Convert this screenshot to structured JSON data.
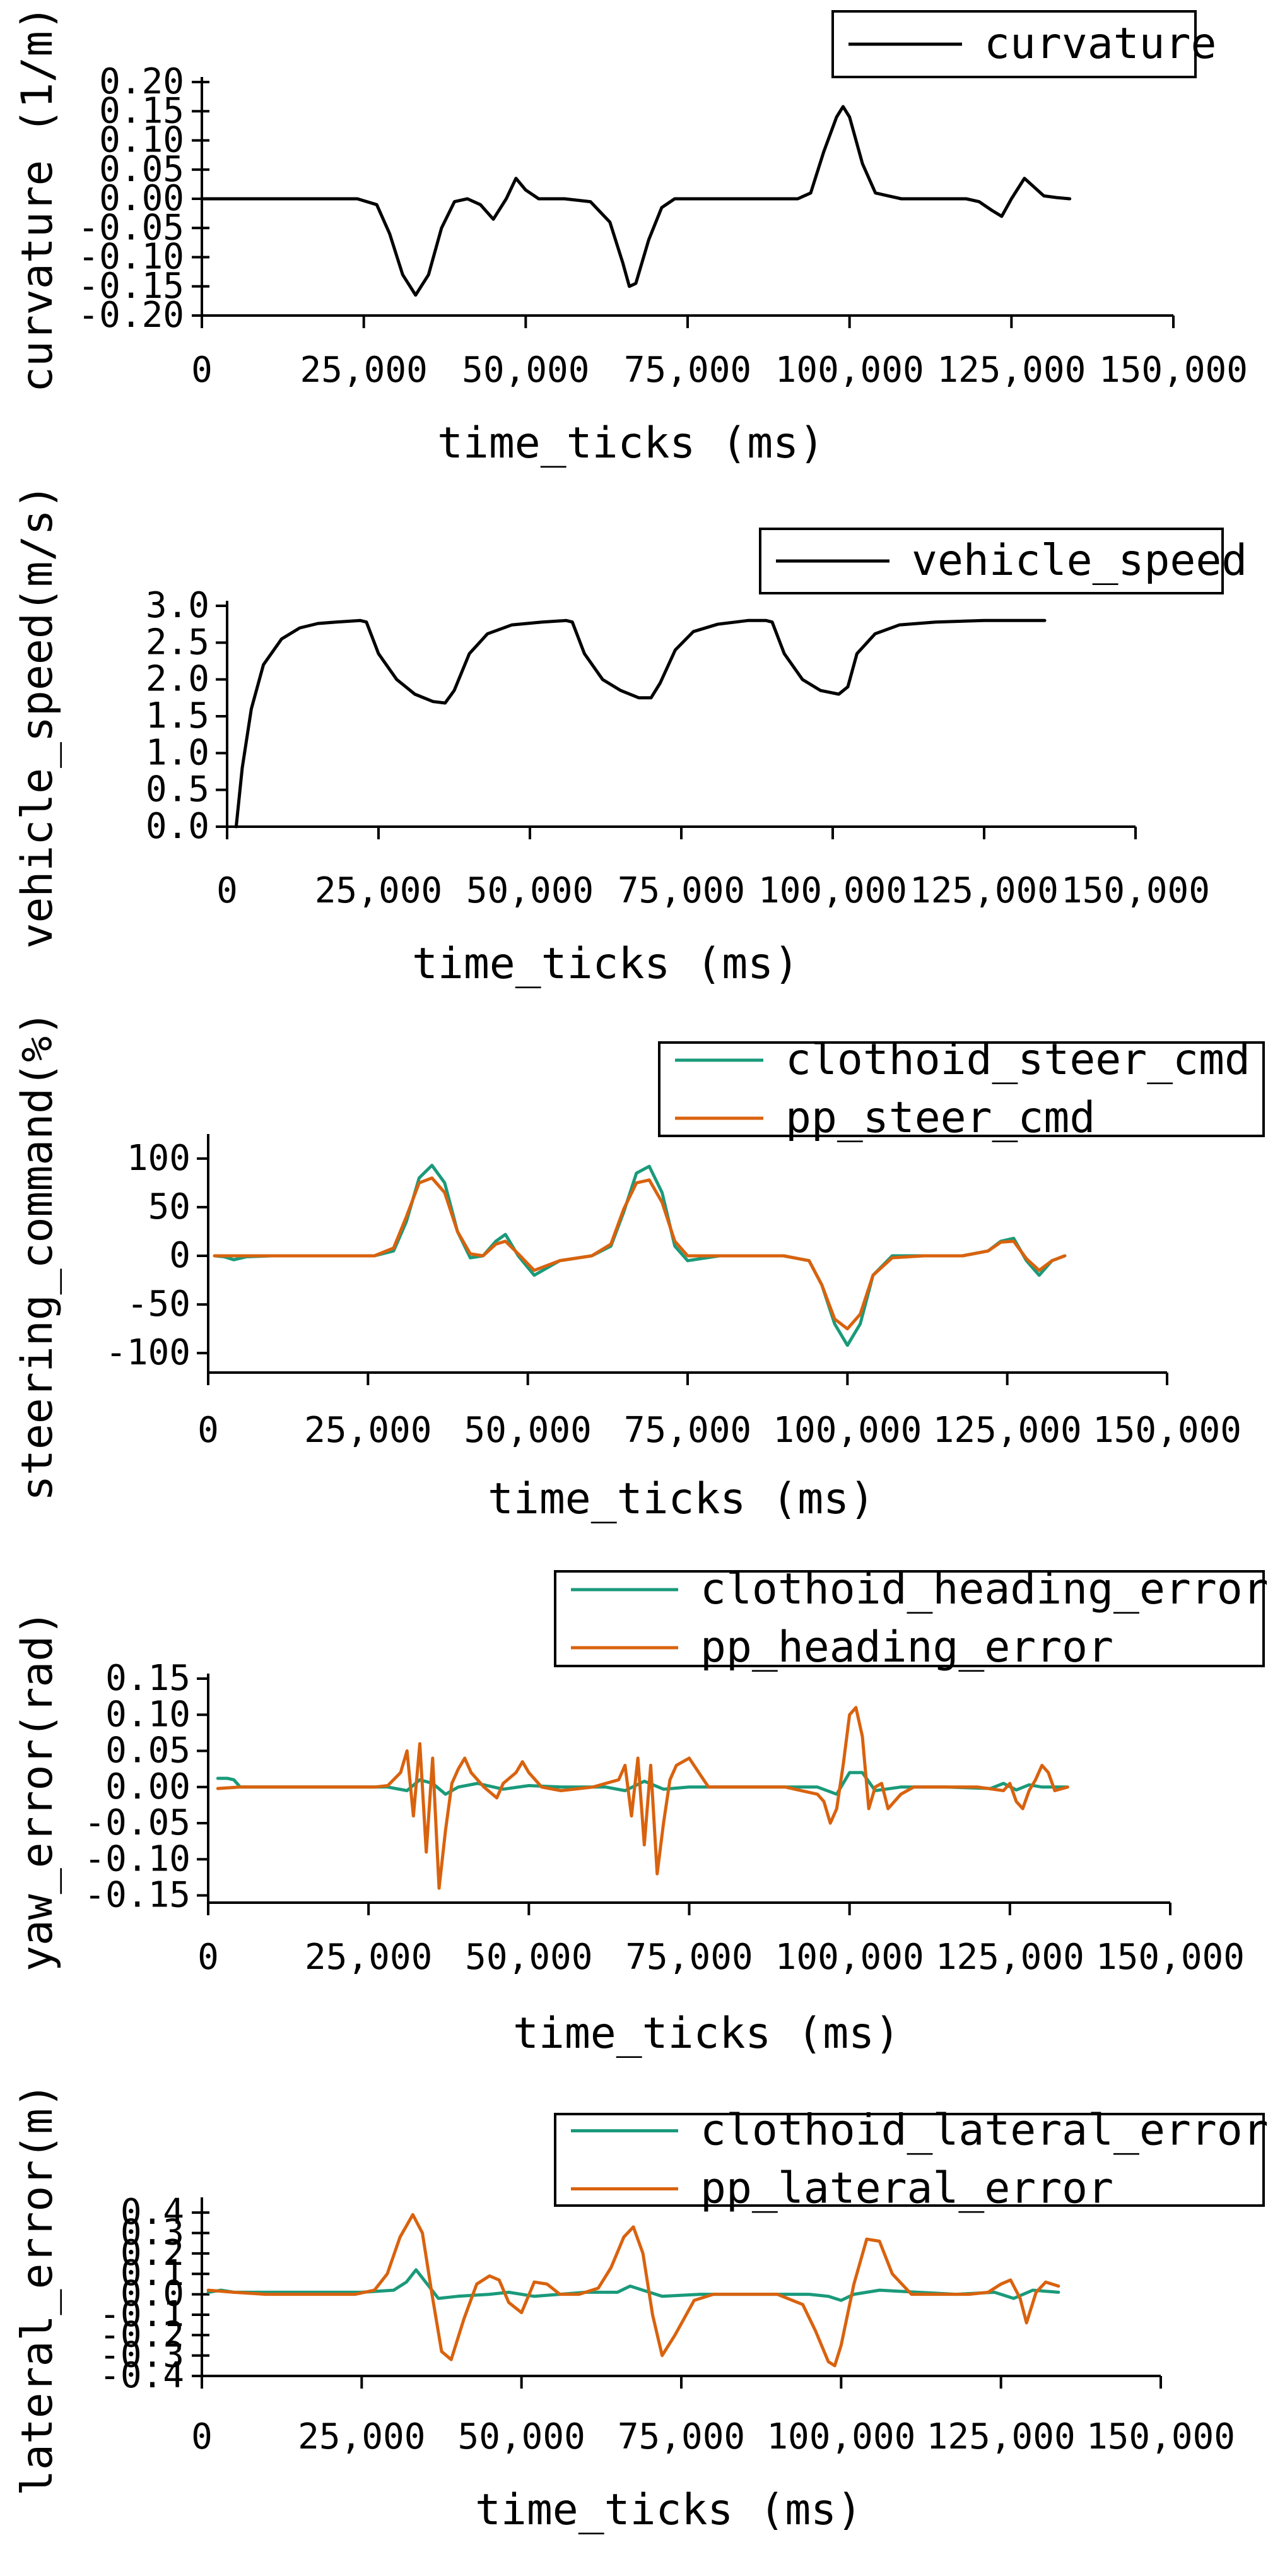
{
  "colors": {
    "clothoid": "#1a9a7a",
    "pp": "#d9620e",
    "black": "#000000"
  },
  "chart_data": [
    {
      "type": "line",
      "xlabel": "time_ticks (ms)",
      "ylabel": "curvature (1/m)",
      "xlim": [
        0,
        150000
      ],
      "ylim": [
        -0.2,
        0.2
      ],
      "xticks": [
        0,
        25000,
        50000,
        75000,
        100000,
        125000,
        150000
      ],
      "xtick_labels": [
        "0",
        "25,000",
        "50,000",
        "75,000",
        "100,000",
        "125,000",
        "150,000"
      ],
      "yticks": [
        -0.2,
        -0.15,
        -0.1,
        -0.05,
        0,
        0.05,
        0.1,
        0.15,
        0.2
      ],
      "ytick_labels": [
        "-0.20",
        "-0.15",
        "-0.10",
        "-0.05",
        "0.00",
        "0.05",
        "0.10",
        "0.15",
        "0.20"
      ],
      "legend_position": "top-right",
      "series": [
        {
          "name": "curvature",
          "color": "#000000",
          "x": [
            0,
            24000,
            27000,
            29000,
            31000,
            33000,
            35000,
            37000,
            39000,
            41000,
            43000,
            45000,
            47000,
            48500,
            50000,
            52000,
            56000,
            60000,
            63000,
            65000,
            66000,
            67000,
            69000,
            71000,
            73000,
            80000,
            92000,
            94000,
            96000,
            98000,
            99000,
            100000,
            102000,
            104000,
            108000,
            118000,
            120000,
            122000,
            123500,
            125000,
            127000,
            128500,
            130000,
            132000,
            134000
          ],
          "y": [
            0,
            0,
            -0.01,
            -0.06,
            -0.13,
            -0.165,
            -0.13,
            -0.05,
            -0.005,
            0,
            -0.01,
            -0.035,
            0,
            0.035,
            0.015,
            0,
            0,
            -0.005,
            -0.04,
            -0.11,
            -0.15,
            -0.145,
            -0.07,
            -0.015,
            0,
            0,
            0,
            0.01,
            0.08,
            0.14,
            0.158,
            0.14,
            0.06,
            0.01,
            0,
            0,
            -0.005,
            -0.02,
            -0.03,
            0,
            0.035,
            0.02,
            0.005,
            0.002,
            0
          ]
        }
      ]
    },
    {
      "type": "line",
      "xlabel": "time_ticks (ms)",
      "ylabel": "vehicle_speed(m/s)",
      "xlim": [
        0,
        150000
      ],
      "ylim": [
        0,
        3
      ],
      "xticks": [
        0,
        25000,
        50000,
        75000,
        100000,
        125000,
        150000
      ],
      "xtick_labels": [
        "0",
        "25,000",
        "50,000",
        "75,000",
        "100,000",
        "125,000",
        "150,000"
      ],
      "yticks": [
        0,
        0.5,
        1,
        1.5,
        2,
        2.5,
        3
      ],
      "ytick_labels": [
        "0.0",
        "0.5",
        "1.0",
        "1.5",
        "2.0",
        "2.5",
        "3.0"
      ],
      "legend_position": "top-right",
      "series": [
        {
          "name": "vehicle_speed",
          "color": "#000000",
          "x": [
            1500,
            2500,
            4000,
            6000,
            9000,
            12000,
            15000,
            18000,
            22000,
            23000,
            25000,
            28000,
            31000,
            34000,
            36000,
            37500,
            40000,
            43000,
            47000,
            52000,
            56000,
            57000,
            59000,
            62000,
            65000,
            68000,
            70000,
            71500,
            74000,
            77000,
            81000,
            86000,
            89000,
            90000,
            92000,
            95000,
            98000,
            101000,
            102500,
            104000,
            107000,
            111000,
            117000,
            125000,
            135000
          ],
          "y": [
            0,
            0.8,
            1.6,
            2.2,
            2.55,
            2.7,
            2.76,
            2.78,
            2.8,
            2.78,
            2.35,
            2.0,
            1.8,
            1.7,
            1.68,
            1.85,
            2.35,
            2.62,
            2.74,
            2.78,
            2.8,
            2.78,
            2.35,
            2.0,
            1.85,
            1.75,
            1.75,
            1.95,
            2.4,
            2.65,
            2.75,
            2.8,
            2.8,
            2.78,
            2.35,
            2.0,
            1.85,
            1.8,
            1.9,
            2.35,
            2.62,
            2.74,
            2.78,
            2.8,
            2.8
          ]
        }
      ]
    },
    {
      "type": "line",
      "xlabel": "time_ticks (ms)",
      "ylabel": "steering_command(%)",
      "xlim": [
        0,
        150000
      ],
      "ylim": [
        -120,
        120
      ],
      "xticks": [
        0,
        25000,
        50000,
        75000,
        100000,
        125000,
        150000
      ],
      "xtick_labels": [
        "0",
        "25,000",
        "50,000",
        "75,000",
        "100,000",
        "125,000",
        "150,000"
      ],
      "yticks": [
        -100,
        -50,
        0,
        50,
        100
      ],
      "ytick_labels": [
        "-100",
        "-50",
        "0",
        "50",
        "100"
      ],
      "legend_position": "top-right",
      "series": [
        {
          "name": "clothoid_steer_cmd",
          "color": "#1a9a7a",
          "x": [
            1000,
            2500,
            4000,
            6000,
            10000,
            26000,
            29000,
            31000,
            33000,
            35000,
            37000,
            39000,
            41000,
            43000,
            45000,
            46500,
            48500,
            51000,
            55000,
            60000,
            63000,
            65000,
            67000,
            69000,
            71000,
            73000,
            75000,
            80000,
            90000,
            94000,
            96000,
            98000,
            100000,
            102000,
            104000,
            107000,
            112000,
            118000,
            122000,
            124000,
            126000,
            128000,
            130000,
            132000,
            134000
          ],
          "y": [
            0,
            -1,
            -4,
            -1,
            0,
            0,
            5,
            35,
            80,
            93,
            75,
            25,
            -2,
            0,
            15,
            22,
            0,
            -20,
            -5,
            0,
            10,
            45,
            85,
            92,
            65,
            10,
            -5,
            0,
            0,
            -5,
            -30,
            -70,
            -92,
            -70,
            -20,
            0,
            0,
            0,
            5,
            15,
            18,
            -5,
            -20,
            -5,
            0
          ]
        },
        {
          "name": "pp_steer_cmd",
          "color": "#d9620e",
          "x": [
            1000,
            4000,
            10000,
            26000,
            29000,
            31000,
            33000,
            35000,
            37000,
            39000,
            41000,
            43000,
            45000,
            46500,
            48500,
            51000,
            55000,
            60000,
            63000,
            65000,
            67000,
            69000,
            71000,
            73000,
            75000,
            80000,
            90000,
            94000,
            96000,
            98000,
            100000,
            102000,
            104000,
            107000,
            112000,
            118000,
            122000,
            124000,
            126000,
            128000,
            130000,
            132000,
            134000
          ],
          "y": [
            0,
            0,
            0,
            0,
            8,
            40,
            75,
            80,
            65,
            25,
            2,
            0,
            12,
            15,
            2,
            -15,
            -5,
            0,
            12,
            48,
            75,
            78,
            55,
            15,
            0,
            0,
            0,
            -5,
            -30,
            -65,
            -75,
            -60,
            -20,
            -2,
            0,
            0,
            5,
            14,
            15,
            -3,
            -15,
            -5,
            0
          ]
        }
      ]
    },
    {
      "type": "line",
      "xlabel": "time_ticks (ms)",
      "ylabel": "yaw_error(rad)",
      "xlim": [
        0,
        150000
      ],
      "ylim": [
        -0.16,
        0.15
      ],
      "xticks": [
        0,
        25000,
        50000,
        75000,
        100000,
        125000,
        150000
      ],
      "xtick_labels": [
        "0",
        "25,000",
        "50,000",
        "75,000",
        "100,000",
        "125,000",
        "150,000"
      ],
      "yticks": [
        -0.15,
        -0.1,
        -0.05,
        0,
        0.05,
        0.1,
        0.15
      ],
      "ytick_labels": [
        "-0.15",
        "-0.10",
        "-0.05",
        "0.00",
        "0.05",
        "0.10",
        "0.15"
      ],
      "legend_position": "top-right",
      "series": [
        {
          "name": "clothoid_heading_error",
          "color": "#1a9a7a",
          "x": [
            1500,
            3000,
            4000,
            5000,
            8000,
            28000,
            31000,
            33000,
            35000,
            37000,
            39000,
            42000,
            46000,
            50000,
            55000,
            62000,
            65000,
            68000,
            71000,
            75000,
            80000,
            95000,
            98000,
            100000,
            102000,
            104000,
            108000,
            115000,
            122000,
            124000,
            126000,
            128000,
            130000,
            134000
          ],
          "y": [
            0.012,
            0.012,
            0.01,
            0,
            0,
            0,
            -0.005,
            0.01,
            0.005,
            -0.01,
            0,
            0.005,
            -0.003,
            0.002,
            0,
            0,
            -0.005,
            0.008,
            -0.003,
            0,
            0,
            0,
            -0.01,
            0.02,
            0.02,
            -0.005,
            0,
            0,
            -0.002,
            0.005,
            -0.004,
            0.003,
            0,
            0
          ]
        },
        {
          "name": "pp_heading_error",
          "color": "#d9620e",
          "x": [
            1500,
            5000,
            10000,
            26000,
            28000,
            30000,
            31000,
            32000,
            33000,
            34000,
            35000,
            36000,
            37000,
            38000,
            39000,
            40000,
            41000,
            43000,
            45000,
            46000,
            48000,
            49000,
            50000,
            52000,
            55000,
            60000,
            62000,
            64000,
            65000,
            66000,
            67000,
            68000,
            69000,
            70000,
            71000,
            72000,
            73000,
            75000,
            78000,
            90000,
            95000,
            96000,
            97000,
            98000,
            99000,
            100000,
            101000,
            102000,
            103000,
            104000,
            105000,
            106000,
            108000,
            110000,
            115000,
            120000,
            124000,
            125000,
            126000,
            127000,
            128000,
            129000,
            130000,
            131000,
            132000,
            134000
          ],
          "y": [
            -0.002,
            0,
            0,
            0,
            0.002,
            0.02,
            0.05,
            -0.04,
            0.06,
            -0.09,
            0.04,
            -0.14,
            -0.06,
            0.005,
            0.025,
            0.04,
            0.02,
            0,
            -0.015,
            0.005,
            0.02,
            0.035,
            0.02,
            0,
            -0.005,
            0,
            0.005,
            0.01,
            0.03,
            -0.04,
            0.04,
            -0.08,
            0.03,
            -0.12,
            -0.05,
            0.01,
            0.03,
            0.04,
            0,
            0,
            -0.01,
            -0.02,
            -0.05,
            -0.03,
            0.03,
            0.1,
            0.11,
            0.07,
            -0.03,
            0,
            0.005,
            -0.03,
            -0.01,
            0,
            0,
            0,
            -0.005,
            0.005,
            -0.02,
            -0.03,
            -0.005,
            0.01,
            0.03,
            0.02,
            -0.005,
            0
          ]
        }
      ]
    },
    {
      "type": "line",
      "xlabel": "time_ticks (ms)",
      "ylabel": "lateral_error(m)",
      "xlim": [
        0,
        150000
      ],
      "ylim": [
        -0.4,
        0.45
      ],
      "xticks": [
        0,
        25000,
        50000,
        75000,
        100000,
        125000,
        150000
      ],
      "xtick_labels": [
        "0",
        "25,000",
        "50,000",
        "75,000",
        "100,000",
        "125,000",
        "150,000"
      ],
      "yticks": [
        -0.4,
        -0.3,
        -0.2,
        -0.1,
        0,
        0.1,
        0.2,
        0.3,
        0.4
      ],
      "ytick_labels": [
        "-0.4",
        "-0.3",
        "-0.2",
        "-0.1",
        "0.0",
        "0.1",
        "0.2",
        "0.3",
        "0.4"
      ],
      "legend_position": "top-right",
      "series": [
        {
          "name": "clothoid_lateral_error",
          "color": "#1a9a7a",
          "x": [
            1000,
            3000,
            5000,
            8000,
            25000,
            30000,
            32000,
            33500,
            35000,
            37000,
            40000,
            45000,
            48000,
            52000,
            56000,
            60000,
            65000,
            67000,
            69000,
            72000,
            78000,
            90000,
            95000,
            98000,
            100000,
            102000,
            106000,
            112000,
            118000,
            124000,
            127000,
            130000,
            134000
          ],
          "y": [
            0.01,
            0.02,
            0.01,
            0.01,
            0.01,
            0.02,
            0.06,
            0.12,
            0.06,
            -0.02,
            -0.01,
            0,
            0.01,
            -0.01,
            0,
            0.01,
            0.01,
            0.04,
            0.02,
            -0.01,
            0,
            0,
            0,
            -0.01,
            -0.03,
            0,
            0.02,
            0.01,
            0,
            0.01,
            -0.02,
            0.02,
            0.01
          ]
        },
        {
          "name": "pp_lateral_error",
          "color": "#d9620e",
          "x": [
            1000,
            5000,
            10000,
            24000,
            27000,
            29000,
            31000,
            33000,
            34500,
            36000,
            37500,
            39000,
            41000,
            43000,
            45000,
            46500,
            48000,
            50000,
            52000,
            54000,
            56000,
            59000,
            62000,
            64000,
            66000,
            67500,
            69000,
            70500,
            72000,
            74000,
            77000,
            80000,
            90000,
            94000,
            96000,
            98000,
            99000,
            100000,
            102000,
            104000,
            106000,
            108000,
            111000,
            115000,
            120000,
            123000,
            125000,
            126500,
            128000,
            129000,
            130500,
            132000,
            134000
          ],
          "y": [
            0.02,
            0.01,
            0,
            0,
            0.02,
            0.1,
            0.28,
            0.39,
            0.3,
            0,
            -0.28,
            -0.32,
            -0.12,
            0.05,
            0.09,
            0.07,
            -0.04,
            -0.09,
            0.06,
            0.05,
            0,
            0,
            0.03,
            0.13,
            0.28,
            0.33,
            0.2,
            -0.1,
            -0.3,
            -0.2,
            -0.03,
            0,
            0,
            -0.05,
            -0.18,
            -0.33,
            -0.35,
            -0.25,
            0.05,
            0.27,
            0.26,
            0.1,
            0,
            0,
            0,
            0.01,
            0.05,
            0.07,
            -0.02,
            -0.14,
            0.01,
            0.06,
            0.04
          ]
        }
      ]
    }
  ]
}
